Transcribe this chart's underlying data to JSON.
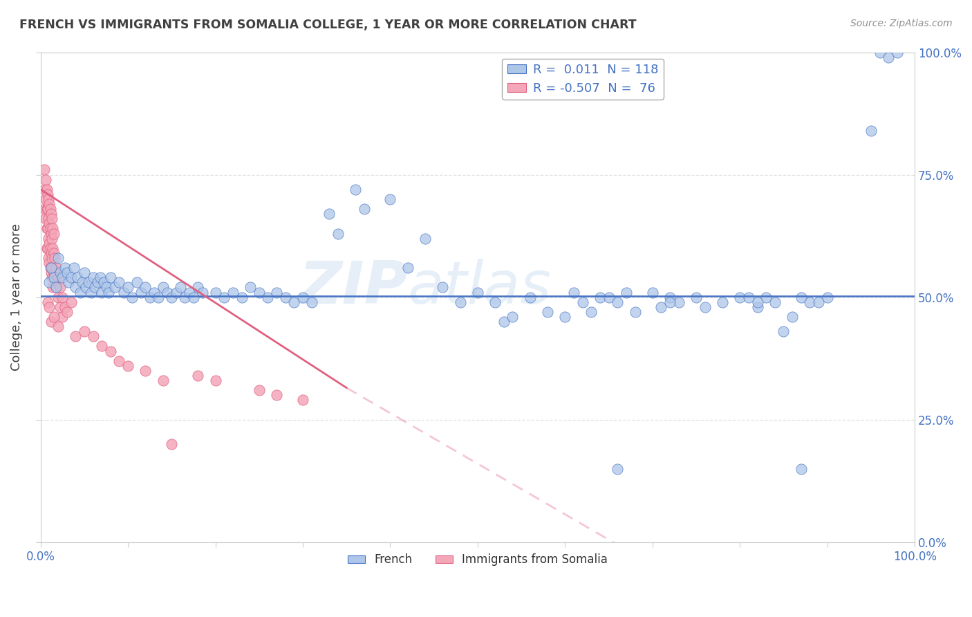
{
  "title": "FRENCH VS IMMIGRANTS FROM SOMALIA COLLEGE, 1 YEAR OR MORE CORRELATION CHART",
  "source_text": "Source: ZipAtlas.com",
  "ylabel": "College, 1 year or more",
  "xlim": [
    0.0,
    1.0
  ],
  "ylim": [
    0.0,
    1.0
  ],
  "y_tick_positions": [
    0.0,
    0.25,
    0.5,
    0.75,
    1.0
  ],
  "y_tick_labels": [
    "0.0%",
    "25.0%",
    "50.0%",
    "75.0%",
    "100.0%"
  ],
  "watermark": "ZIPatlas",
  "blue_R": 0.011,
  "blue_N": 118,
  "pink_R": -0.507,
  "pink_N": 76,
  "blue_color": "#aec6e8",
  "pink_color": "#f4a7b9",
  "blue_line_color": "#4472c4",
  "pink_line_color": "#e06080",
  "bg_color": "#ffffff",
  "grid_color": "#e0e0e0",
  "title_color": "#404040",
  "source_color": "#909090",
  "blue_scatter": [
    [
      0.01,
      0.53
    ],
    [
      0.012,
      0.56
    ],
    [
      0.015,
      0.54
    ],
    [
      0.018,
      0.52
    ],
    [
      0.02,
      0.58
    ],
    [
      0.022,
      0.55
    ],
    [
      0.025,
      0.54
    ],
    [
      0.028,
      0.56
    ],
    [
      0.03,
      0.55
    ],
    [
      0.032,
      0.53
    ],
    [
      0.035,
      0.54
    ],
    [
      0.038,
      0.56
    ],
    [
      0.04,
      0.52
    ],
    [
      0.042,
      0.54
    ],
    [
      0.045,
      0.51
    ],
    [
      0.048,
      0.53
    ],
    [
      0.05,
      0.55
    ],
    [
      0.052,
      0.52
    ],
    [
      0.055,
      0.53
    ],
    [
      0.058,
      0.51
    ],
    [
      0.06,
      0.54
    ],
    [
      0.062,
      0.52
    ],
    [
      0.065,
      0.53
    ],
    [
      0.068,
      0.54
    ],
    [
      0.07,
      0.51
    ],
    [
      0.072,
      0.53
    ],
    [
      0.075,
      0.52
    ],
    [
      0.078,
      0.51
    ],
    [
      0.08,
      0.54
    ],
    [
      0.085,
      0.52
    ],
    [
      0.09,
      0.53
    ],
    [
      0.095,
      0.51
    ],
    [
      0.1,
      0.52
    ],
    [
      0.105,
      0.5
    ],
    [
      0.11,
      0.53
    ],
    [
      0.115,
      0.51
    ],
    [
      0.12,
      0.52
    ],
    [
      0.125,
      0.5
    ],
    [
      0.13,
      0.51
    ],
    [
      0.135,
      0.5
    ],
    [
      0.14,
      0.52
    ],
    [
      0.145,
      0.51
    ],
    [
      0.15,
      0.5
    ],
    [
      0.155,
      0.51
    ],
    [
      0.16,
      0.52
    ],
    [
      0.165,
      0.5
    ],
    [
      0.17,
      0.51
    ],
    [
      0.175,
      0.5
    ],
    [
      0.18,
      0.52
    ],
    [
      0.185,
      0.51
    ],
    [
      0.2,
      0.51
    ],
    [
      0.21,
      0.5
    ],
    [
      0.22,
      0.51
    ],
    [
      0.23,
      0.5
    ],
    [
      0.24,
      0.52
    ],
    [
      0.25,
      0.51
    ],
    [
      0.26,
      0.5
    ],
    [
      0.27,
      0.51
    ],
    [
      0.28,
      0.5
    ],
    [
      0.29,
      0.49
    ],
    [
      0.3,
      0.5
    ],
    [
      0.31,
      0.49
    ],
    [
      0.33,
      0.67
    ],
    [
      0.34,
      0.63
    ],
    [
      0.36,
      0.72
    ],
    [
      0.37,
      0.68
    ],
    [
      0.4,
      0.7
    ],
    [
      0.42,
      0.56
    ],
    [
      0.44,
      0.62
    ],
    [
      0.46,
      0.52
    ],
    [
      0.48,
      0.49
    ],
    [
      0.5,
      0.51
    ],
    [
      0.52,
      0.49
    ],
    [
      0.53,
      0.45
    ],
    [
      0.54,
      0.46
    ],
    [
      0.56,
      0.5
    ],
    [
      0.58,
      0.47
    ],
    [
      0.6,
      0.46
    ],
    [
      0.61,
      0.51
    ],
    [
      0.62,
      0.49
    ],
    [
      0.63,
      0.47
    ],
    [
      0.64,
      0.5
    ],
    [
      0.65,
      0.5
    ],
    [
      0.66,
      0.49
    ],
    [
      0.67,
      0.51
    ],
    [
      0.68,
      0.47
    ],
    [
      0.7,
      0.51
    ],
    [
      0.71,
      0.48
    ],
    [
      0.72,
      0.5
    ],
    [
      0.73,
      0.49
    ],
    [
      0.75,
      0.5
    ],
    [
      0.76,
      0.48
    ],
    [
      0.78,
      0.49
    ],
    [
      0.8,
      0.5
    ],
    [
      0.81,
      0.5
    ],
    [
      0.82,
      0.48
    ],
    [
      0.83,
      0.5
    ],
    [
      0.84,
      0.49
    ],
    [
      0.85,
      0.43
    ],
    [
      0.86,
      0.46
    ],
    [
      0.87,
      0.5
    ],
    [
      0.88,
      0.49
    ],
    [
      0.89,
      0.49
    ],
    [
      0.9,
      0.5
    ],
    [
      0.66,
      0.15
    ],
    [
      0.72,
      0.49
    ],
    [
      0.82,
      0.49
    ],
    [
      0.87,
      0.15
    ],
    [
      0.95,
      0.84
    ],
    [
      0.96,
      1.0
    ],
    [
      0.97,
      0.99
    ],
    [
      0.98,
      1.0
    ]
  ],
  "pink_scatter": [
    [
      0.004,
      0.76
    ],
    [
      0.005,
      0.72
    ],
    [
      0.005,
      0.68
    ],
    [
      0.006,
      0.74
    ],
    [
      0.006,
      0.7
    ],
    [
      0.006,
      0.66
    ],
    [
      0.007,
      0.72
    ],
    [
      0.007,
      0.68
    ],
    [
      0.007,
      0.64
    ],
    [
      0.007,
      0.6
    ],
    [
      0.008,
      0.71
    ],
    [
      0.008,
      0.68
    ],
    [
      0.008,
      0.64
    ],
    [
      0.008,
      0.6
    ],
    [
      0.009,
      0.7
    ],
    [
      0.009,
      0.66
    ],
    [
      0.009,
      0.62
    ],
    [
      0.009,
      0.58
    ],
    [
      0.01,
      0.69
    ],
    [
      0.01,
      0.65
    ],
    [
      0.01,
      0.61
    ],
    [
      0.01,
      0.57
    ],
    [
      0.011,
      0.68
    ],
    [
      0.011,
      0.64
    ],
    [
      0.011,
      0.6
    ],
    [
      0.011,
      0.56
    ],
    [
      0.012,
      0.67
    ],
    [
      0.012,
      0.63
    ],
    [
      0.012,
      0.59
    ],
    [
      0.012,
      0.55
    ],
    [
      0.013,
      0.66
    ],
    [
      0.013,
      0.62
    ],
    [
      0.013,
      0.58
    ],
    [
      0.013,
      0.54
    ],
    [
      0.014,
      0.64
    ],
    [
      0.014,
      0.6
    ],
    [
      0.014,
      0.56
    ],
    [
      0.014,
      0.52
    ],
    [
      0.015,
      0.63
    ],
    [
      0.015,
      0.59
    ],
    [
      0.015,
      0.55
    ],
    [
      0.016,
      0.58
    ],
    [
      0.016,
      0.54
    ],
    [
      0.018,
      0.56
    ],
    [
      0.018,
      0.52
    ],
    [
      0.02,
      0.54
    ],
    [
      0.02,
      0.5
    ],
    [
      0.022,
      0.52
    ],
    [
      0.022,
      0.48
    ],
    [
      0.025,
      0.5
    ],
    [
      0.025,
      0.46
    ],
    [
      0.028,
      0.48
    ],
    [
      0.03,
      0.47
    ],
    [
      0.035,
      0.49
    ],
    [
      0.04,
      0.42
    ],
    [
      0.05,
      0.43
    ],
    [
      0.06,
      0.42
    ],
    [
      0.07,
      0.4
    ],
    [
      0.08,
      0.39
    ],
    [
      0.09,
      0.37
    ],
    [
      0.1,
      0.36
    ],
    [
      0.12,
      0.35
    ],
    [
      0.14,
      0.33
    ],
    [
      0.15,
      0.2
    ],
    [
      0.18,
      0.34
    ],
    [
      0.2,
      0.33
    ],
    [
      0.25,
      0.31
    ],
    [
      0.27,
      0.3
    ],
    [
      0.3,
      0.29
    ],
    [
      0.008,
      0.49
    ],
    [
      0.01,
      0.48
    ],
    [
      0.012,
      0.45
    ],
    [
      0.015,
      0.46
    ],
    [
      0.02,
      0.44
    ]
  ],
  "pink_line_x0": 0.0,
  "pink_line_y0": 0.72,
  "pink_line_x1": 0.35,
  "pink_line_y1": 0.315,
  "pink_line_xend": 0.8,
  "pink_line_yend": -0.15,
  "blue_line_y_intercept": 0.503,
  "blue_line_slope": 0.0
}
